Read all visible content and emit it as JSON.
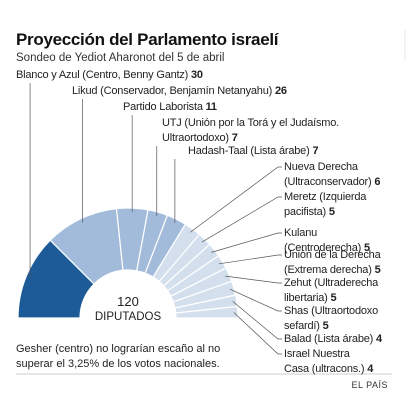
{
  "chart_data": {
    "type": "half-donut",
    "title": "Proyección del Parlamento israelí",
    "subtitle": "Sondeo de Yediot Aharonot del 5 de abril",
    "categories": [
      "Blanco y Azul (Centro, Benny Gantz)",
      "Likud (Conservador, Benjamín Netanyahu)",
      "Partido Laborista",
      "UTJ (Unión por la Torá y el Judaísmo.\nUltraortodoxo)",
      "Hadash-Taal (Lista árabe)",
      "Nueva Derecha\n(Ultraconservador)",
      "Meretz (Izquierda\npacifista)",
      "Kulanu\n(Centroderecha)",
      "Unión de la Derecha\n(Extrema derecha)",
      "Zehut (Ultraderecha\nlibertaria)",
      "Shas (Ultraortodoxo\nsefardí)",
      "Balad (Lista árabe)",
      "Israel Nuestra\nCasa (ultracons.)"
    ],
    "values": [
      30,
      26,
      11,
      7,
      7,
      6,
      5,
      5,
      5,
      5,
      5,
      4,
      4
    ],
    "colors": [
      "#1d5b98",
      "#a2bbdb",
      "#a2bbdb",
      "#a2bbdb",
      "#a2bbdb",
      "#d4dfee",
      "#d4dfee",
      "#d4dfee",
      "#d4dfee",
      "#d4dfee",
      "#d4dfee",
      "#d4dfee",
      "#d4dfee"
    ],
    "center_value": 120,
    "center_label": "DIPUTADOS",
    "note": "Gesher (centro) no lograrían escaño al no superar el 3,25% de los votos nacionales.",
    "source": "EL PAÍS"
  }
}
